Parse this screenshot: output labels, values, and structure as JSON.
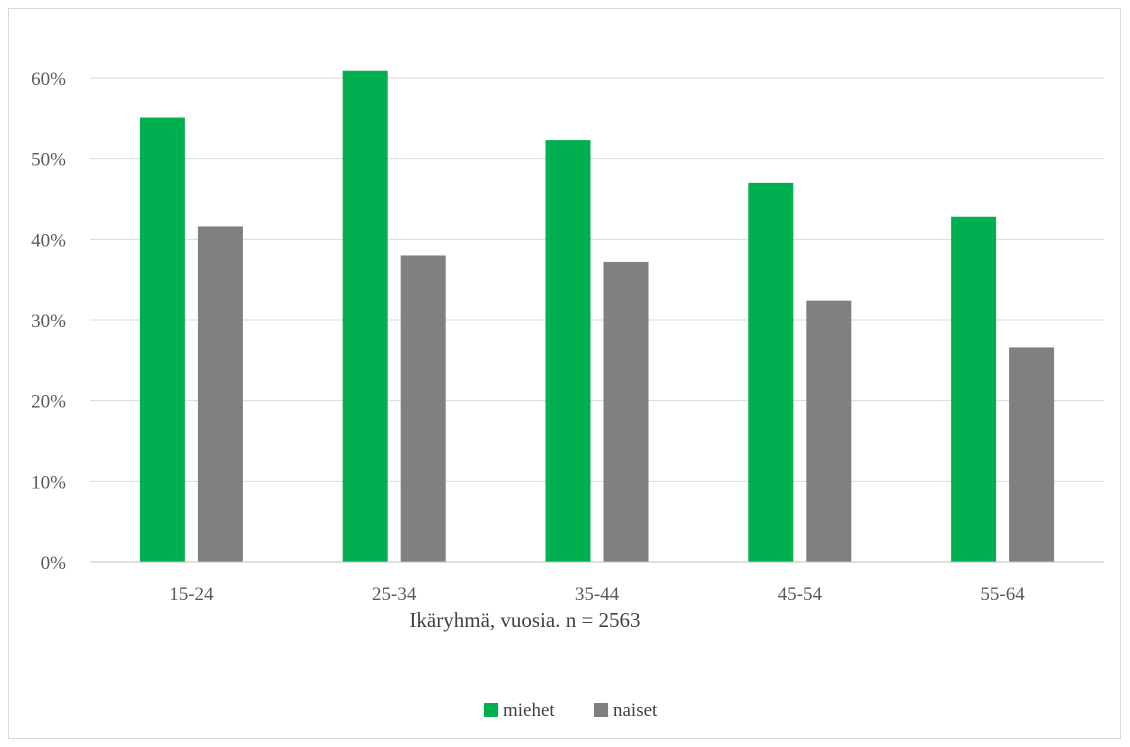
{
  "chart_data": {
    "type": "bar",
    "categories": [
      "15-24",
      "25-34",
      "35-44",
      "45-54",
      "55-64"
    ],
    "series": [
      {
        "name": "miehet",
        "color": "#00b050",
        "values": [
          55.1,
          60.9,
          52.3,
          47.0,
          42.8
        ]
      },
      {
        "name": "naiset",
        "color": "#808080",
        "values": [
          41.6,
          38.0,
          37.2,
          32.4,
          26.6
        ]
      }
    ],
    "yticks": [
      "0%",
      "10%",
      "20%",
      "30%",
      "40%",
      "50%",
      "60%"
    ],
    "ylim": [
      0,
      60
    ],
    "xlabel": "Ikäryhmä, vuosia. n = 2563",
    "ylabel": "",
    "grid": true,
    "legend_position": "bottom"
  }
}
